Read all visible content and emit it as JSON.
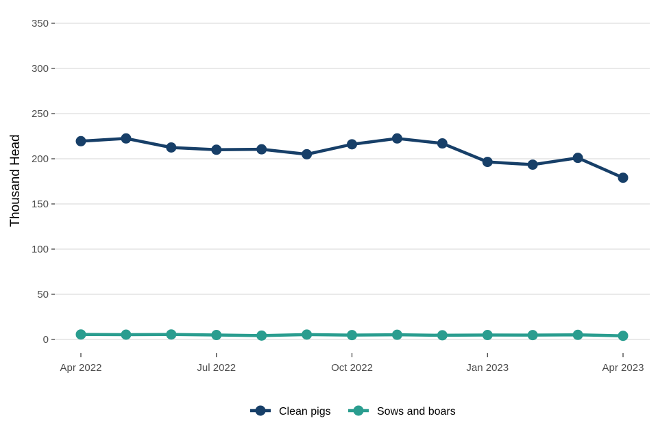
{
  "chart_data": {
    "type": "line",
    "title": "",
    "xlabel": "",
    "ylabel": "Thousand Head",
    "x": [
      "2022-04",
      "2022-05",
      "2022-06",
      "2022-07",
      "2022-08",
      "2022-09",
      "2022-10",
      "2022-11",
      "2022-12",
      "2023-01",
      "2023-02",
      "2023-03",
      "2023-04"
    ],
    "x_ticks": [
      "Apr 2022",
      "Jul 2022",
      "Oct 2022",
      "Jan 2023",
      "Apr 2023"
    ],
    "y_ticks": [
      "0",
      "50",
      "100",
      "150",
      "200",
      "250",
      "300",
      "350"
    ],
    "ylim": [
      0,
      350
    ],
    "grid": "horizontal",
    "legend_position": "bottom",
    "series": [
      {
        "name": "Clean pigs",
        "color": "#173f68",
        "values": [
          219.5,
          222.5,
          212.5,
          210,
          210.5,
          205,
          216,
          222.5,
          217,
          196.5,
          193.5,
          201,
          179
        ]
      },
      {
        "name": "Sows and boars",
        "color": "#2a9d8f",
        "values": [
          5.5,
          5.3,
          5.5,
          4.9,
          4.3,
          5.4,
          4.8,
          5.2,
          4.6,
          4.9,
          4.8,
          5.1,
          4.0
        ]
      }
    ]
  }
}
